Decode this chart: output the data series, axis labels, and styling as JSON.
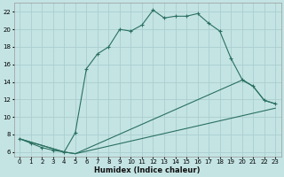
{
  "xlabel": "Humidex (Indice chaleur)",
  "background_color": "#c4e4e4",
  "grid_color": "#aacece",
  "line_color": "#2a7060",
  "xlim": [
    -0.5,
    23.5
  ],
  "ylim": [
    5.5,
    23.0
  ],
  "yticks": [
    6,
    8,
    10,
    12,
    14,
    16,
    18,
    20,
    22
  ],
  "xticks": [
    0,
    1,
    2,
    3,
    4,
    5,
    6,
    7,
    8,
    9,
    10,
    11,
    12,
    13,
    14,
    15,
    16,
    17,
    18,
    19,
    20,
    21,
    22,
    23
  ],
  "curve1_x": [
    0,
    1,
    2,
    3,
    4,
    5,
    6,
    7,
    8,
    9,
    10,
    11,
    12,
    13,
    14,
    15,
    16,
    17,
    18,
    19,
    20,
    21,
    22,
    23
  ],
  "curve1_y": [
    7.5,
    7.0,
    6.5,
    6.2,
    6.0,
    8.2,
    15.5,
    17.2,
    18.0,
    20.0,
    19.8,
    20.5,
    22.2,
    21.3,
    21.5,
    21.5,
    21.8,
    20.7,
    19.8,
    16.7,
    14.3,
    13.5,
    11.9,
    11.5
  ],
  "curve2_x": [
    0,
    4,
    5,
    20,
    21,
    22,
    23
  ],
  "curve2_y": [
    7.5,
    6.0,
    5.8,
    14.2,
    13.5,
    11.9,
    11.5
  ],
  "curve3_x": [
    0,
    4,
    5,
    23
  ],
  "curve3_y": [
    7.5,
    6.0,
    5.8,
    11.0
  ]
}
